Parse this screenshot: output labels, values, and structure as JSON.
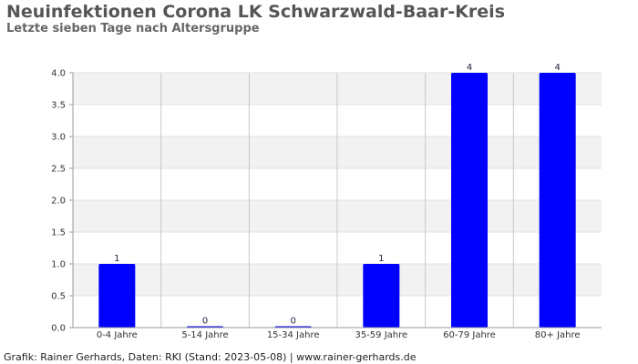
{
  "chart_data": {
    "type": "bar",
    "title": "Neuinfektionen Corona LK Schwarzwald-Baar-Kreis",
    "subtitle": "Letzte sieben Tage nach Altersgruppe",
    "xlabel": "",
    "ylabel": "",
    "categories": [
      "0-4 Jahre",
      "5-14 Jahre",
      "15-34 Jahre",
      "35-59 Jahre",
      "60-79 Jahre",
      "80+ Jahre"
    ],
    "values": [
      1,
      0,
      0,
      1,
      4,
      4
    ],
    "data_labels": [
      "1",
      "0",
      "0",
      "1",
      "4",
      "4"
    ],
    "ylim": [
      0,
      4
    ],
    "yticks": [
      "0.0",
      "0.5",
      "1.0",
      "1.5",
      "2.0",
      "2.5",
      "3.0",
      "3.5",
      "4.0"
    ],
    "grid": true,
    "legend": "none",
    "bar_color": "#0000ff",
    "band_color": "#f2f2f2"
  },
  "footer": "Grafik: Rainer Gerhards, Daten: RKI (Stand: 2023-05-08) | www.rainer-gerhards.de"
}
